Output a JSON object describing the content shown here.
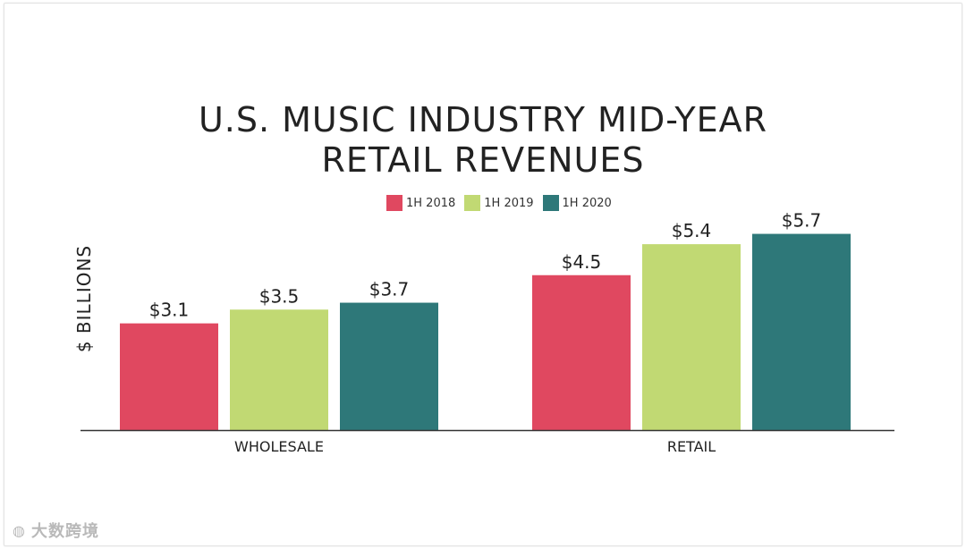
{
  "chart_data": {
    "type": "bar",
    "title": "U.S. MUSIC INDUSTRY MID-YEAR RETAIL REVENUES",
    "title_lines": [
      "U.S. MUSIC INDUSTRY MID-YEAR",
      "RETAIL REVENUES"
    ],
    "ylabel": "$ BILLIONS",
    "xlabel": "",
    "categories": [
      "WHOLESALE",
      "RETAIL"
    ],
    "ylim": [
      0,
      6
    ],
    "grid": false,
    "legend_position": "top-center",
    "series": [
      {
        "name": "1H 2018",
        "color": "#e04860",
        "values": [
          3.1,
          4.5
        ],
        "labels": [
          "$3.1",
          "$4.5"
        ]
      },
      {
        "name": "1H 2019",
        "color": "#c1d973",
        "values": [
          3.5,
          5.4
        ],
        "labels": [
          "$3.5",
          "$5.4"
        ]
      },
      {
        "name": "1H 2020",
        "color": "#2e7879",
        "values": [
          3.7,
          5.7
        ],
        "labels": [
          "$3.7",
          "$5.7"
        ]
      }
    ]
  },
  "watermark": {
    "text": "大数跨境",
    "icon": "logo-icon"
  }
}
